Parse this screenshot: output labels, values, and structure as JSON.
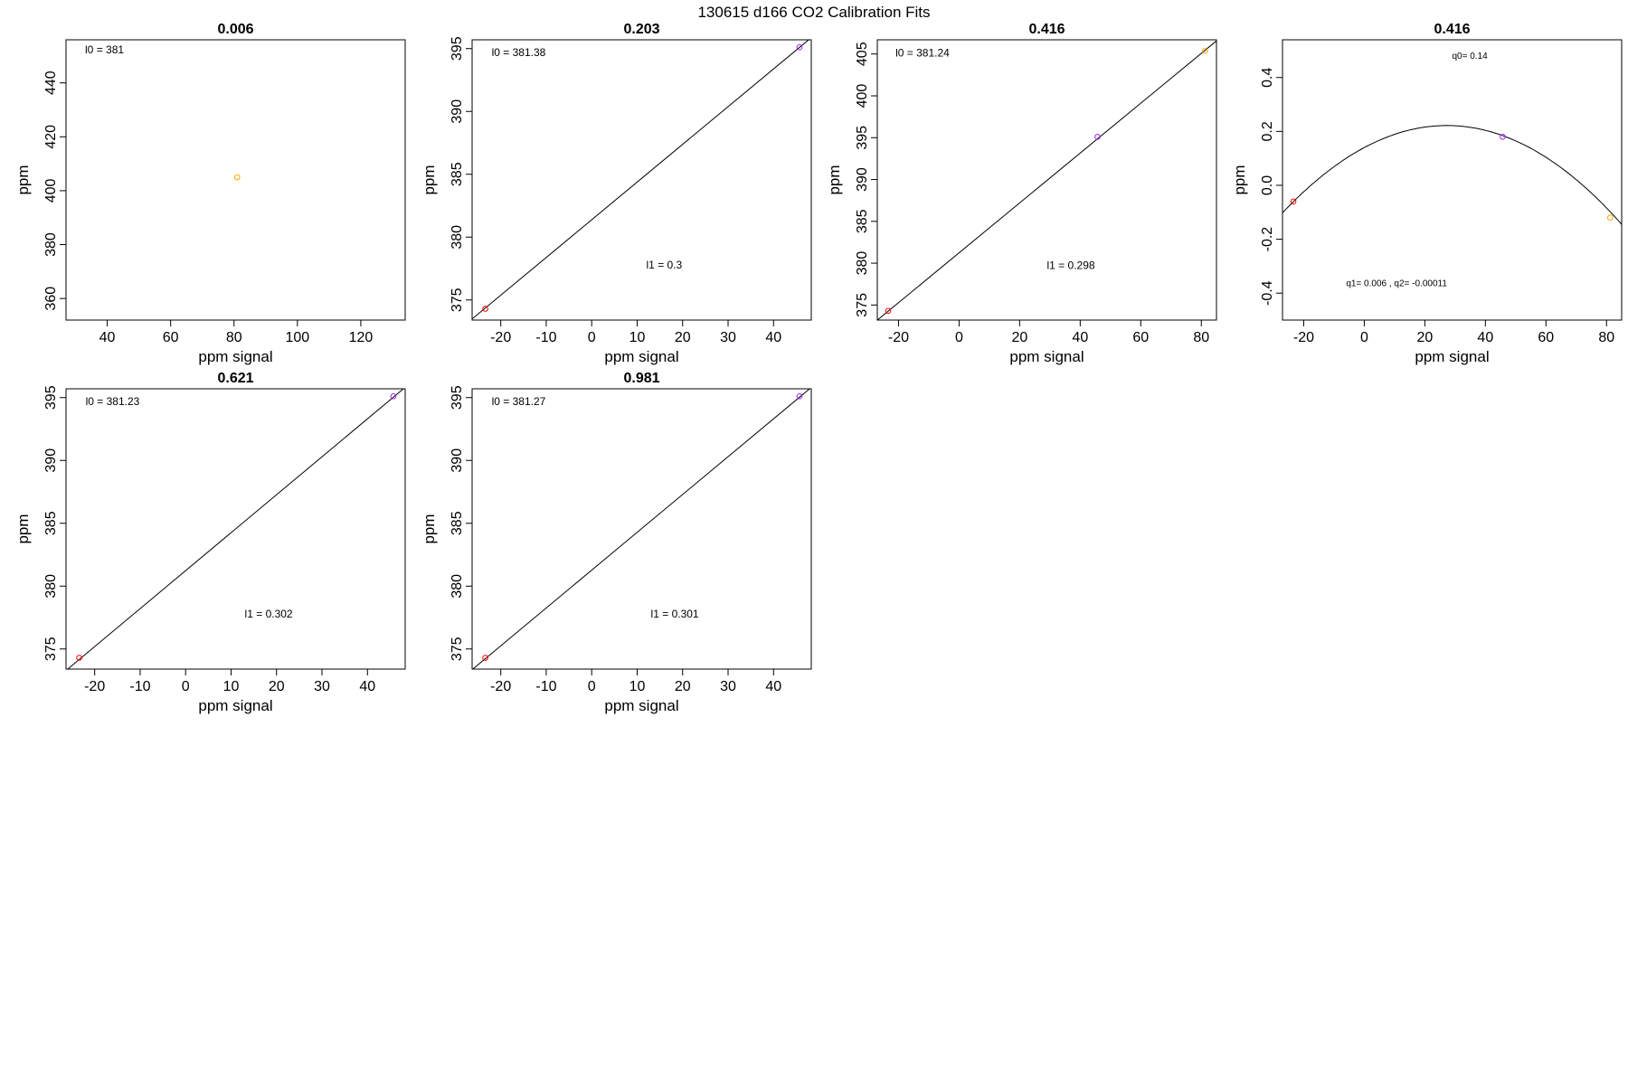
{
  "figure_title": "130615   d166   CO2 Calibration Fits",
  "colors": {
    "frame": "#000000",
    "fit_line": "#000000"
  },
  "chart_data": [
    {
      "type": "scatter",
      "title": "0.006",
      "xlabel": "ppm signal",
      "ylabel": "ppm",
      "xlim": [
        27,
        134
      ],
      "ylim": [
        352,
        456
      ],
      "xticks": [
        "40",
        "60",
        "80",
        "100",
        "120"
      ],
      "yticks": [
        "360",
        "380",
        "400",
        "420",
        "440"
      ],
      "fit": "none",
      "annotations": [
        {
          "text": "l0 =  381",
          "x": 33,
          "y": 451
        }
      ],
      "points": [
        {
          "x": 81,
          "y": 405,
          "color": "#FFA500"
        }
      ]
    },
    {
      "type": "scatter",
      "title": "0.203",
      "xlabel": "ppm signal",
      "ylabel": "ppm",
      "xlim": [
        -26.3,
        48.3
      ],
      "ylim": [
        373.4,
        395.7
      ],
      "xticks": [
        "-20",
        "-10",
        "0",
        "10",
        "20",
        "30",
        "40"
      ],
      "yticks": [
        "375",
        "380",
        "385",
        "390",
        "395"
      ],
      "fit": "linear",
      "coefficients": {
        "l0": 381.38,
        "l1": 0.3
      },
      "annotations": [
        {
          "text": "l0 =  381.38",
          "x": -22,
          "y": 394.4
        },
        {
          "text": "l1 =  0.3",
          "x": 12,
          "y": 377.5
        }
      ],
      "points": [
        {
          "x": -23.4,
          "y": 374.3,
          "color": "#FF0000"
        },
        {
          "x": 45.7,
          "y": 395.1,
          "color": "#A020F0"
        }
      ]
    },
    {
      "type": "scatter",
      "title": "0.416",
      "xlabel": "ppm signal",
      "ylabel": "ppm",
      "xlim": [
        -27,
        85
      ],
      "ylim": [
        373.2,
        406.7
      ],
      "xticks": [
        "-20",
        "0",
        "20",
        "40",
        "60",
        "80"
      ],
      "yticks": [
        "375",
        "380",
        "385",
        "390",
        "395",
        "400",
        "405"
      ],
      "fit": "linear",
      "coefficients": {
        "l0": 381.24,
        "l1": 0.298
      },
      "annotations": [
        {
          "text": "l0 =  381.24",
          "x": -21,
          "y": 404.7
        },
        {
          "text": "l1 =  0.298",
          "x": 29,
          "y": 379.3
        }
      ],
      "points": [
        {
          "x": -23.4,
          "y": 374.3,
          "color": "#FF0000"
        },
        {
          "x": 45.7,
          "y": 395.1,
          "color": "#A020F0"
        },
        {
          "x": 81.2,
          "y": 405.4,
          "color": "#FFA500"
        }
      ]
    },
    {
      "type": "scatter",
      "title": "0.416",
      "xlabel": "ppm signal",
      "ylabel": "ppm",
      "xlim": [
        -27,
        85
      ],
      "ylim": [
        -0.5,
        0.54
      ],
      "xticks": [
        "-20",
        "0",
        "20",
        "40",
        "60",
        "80"
      ],
      "yticks": [
        "-0.4",
        "-0.2",
        "0.0",
        "0.2",
        "0.4"
      ],
      "fit": "quadratic",
      "coefficients": {
        "q0": 0.14,
        "q1": 0.006,
        "q2": -0.00011
      },
      "annotations": [
        {
          "text": "q0= 0.14",
          "x": 29,
          "y": 0.47
        },
        {
          "text": "q1= 0.006 , q2= -0.00011",
          "x": -6,
          "y": -0.375
        }
      ],
      "points": [
        {
          "x": -23.4,
          "y": -0.06,
          "color": "#FF0000"
        },
        {
          "x": 45.7,
          "y": 0.18,
          "color": "#A020F0"
        },
        {
          "x": 81.2,
          "y": -0.12,
          "color": "#FFA500"
        }
      ]
    },
    {
      "type": "scatter",
      "title": "0.621",
      "xlabel": "ppm signal",
      "ylabel": "ppm",
      "xlim": [
        -26.3,
        48.3
      ],
      "ylim": [
        373.4,
        395.7
      ],
      "xticks": [
        "-20",
        "-10",
        "0",
        "10",
        "20",
        "30",
        "40"
      ],
      "yticks": [
        "375",
        "380",
        "385",
        "390",
        "395"
      ],
      "fit": "linear",
      "coefficients": {
        "l0": 381.23,
        "l1": 0.302
      },
      "annotations": [
        {
          "text": "l0 =  381.23",
          "x": -22,
          "y": 394.4
        },
        {
          "text": "l1 =  0.302",
          "x": 13,
          "y": 377.5
        }
      ],
      "points": [
        {
          "x": -23.4,
          "y": 374.3,
          "color": "#FF0000"
        },
        {
          "x": 45.7,
          "y": 395.1,
          "color": "#A020F0"
        }
      ]
    },
    {
      "type": "scatter",
      "title": "0.981",
      "xlabel": "ppm signal",
      "ylabel": "ppm",
      "xlim": [
        -26.3,
        48.3
      ],
      "ylim": [
        373.4,
        395.7
      ],
      "xticks": [
        "-20",
        "-10",
        "0",
        "10",
        "20",
        "30",
        "40"
      ],
      "yticks": [
        "375",
        "380",
        "385",
        "390",
        "395"
      ],
      "fit": "linear",
      "coefficients": {
        "l0": 381.27,
        "l1": 0.301
      },
      "annotations": [
        {
          "text": "l0 =  381.27",
          "x": -22,
          "y": 394.4
        },
        {
          "text": "l1 =  0.301",
          "x": 13,
          "y": 377.5
        }
      ],
      "points": [
        {
          "x": -23.4,
          "y": 374.3,
          "color": "#FF0000"
        },
        {
          "x": 45.7,
          "y": 395.1,
          "color": "#A020F0"
        }
      ]
    }
  ]
}
